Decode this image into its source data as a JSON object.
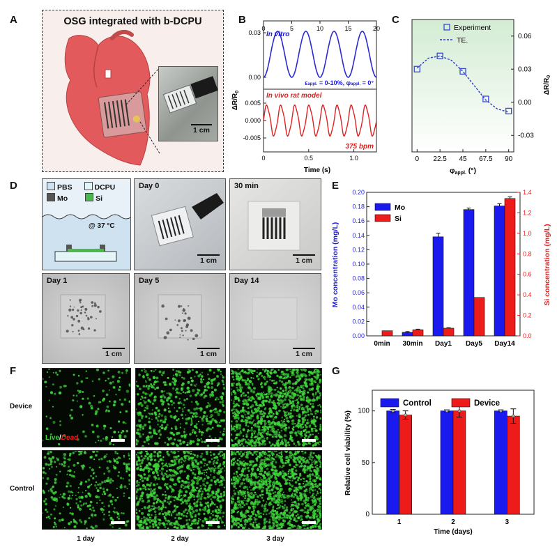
{
  "panels": {
    "a": "A",
    "b": "B",
    "c": "C",
    "d": "D",
    "e": "E",
    "f": "F",
    "g": "G"
  },
  "panel_a": {
    "title": "OSG integrated with b-DCPU",
    "scale": "1 cm"
  },
  "panel_b": {
    "top_label": "In vitro",
    "top_note_strain": "ε",
    "top_note_strain_sub": "appl.",
    "top_note_strain_rest": " = 0-10%, φ",
    "top_note_angle_sub": "appl.",
    "top_note_angle_rest": " = 0°",
    "bottom_label": "In vivo rat model",
    "bpm": "375 bpm",
    "ylabel": "ΔR/R",
    "ylabel_sub": "0",
    "xlabel": "Time (s)",
    "top_yticks": [
      "0.03",
      "0.00"
    ],
    "top_xticks": [
      "0",
      "5",
      "10",
      "15",
      "20"
    ],
    "bottom_yticks": [
      "0.005",
      "0.000",
      "-0.005"
    ],
    "bottom_xticks": [
      "0",
      "0.5",
      "1.0"
    ]
  },
  "panel_d": {
    "legend": [
      "PBS",
      "DCPU",
      "Mo",
      "Si"
    ],
    "temp": "@ 37 °C",
    "photos": [
      "Day 0",
      "30 min",
      "Day 1",
      "Day 5",
      "Day 14"
    ],
    "scale": "1 cm"
  },
  "panel_f": {
    "rows": [
      "Device",
      "Control"
    ],
    "cols": [
      "1 day",
      "2 day",
      "3 day"
    ],
    "stain_live": "Live",
    "stain_sep": "/",
    "stain_dead": "Dead"
  },
  "colors": {
    "blue": "#1a1aee",
    "red": "#ee1b1b",
    "pink": "#f7ece9",
    "green_cell": "#3fd43b",
    "heart": "#e35a5c"
  },
  "chart_data": [
    {
      "id": "B-top",
      "type": "line",
      "title": "In vitro",
      "xlabel": "",
      "ylabel": "ΔR/R0",
      "xlim": [
        0,
        20
      ],
      "ylim": [
        -0.008,
        0.038
      ],
      "series": [
        {
          "name": "In vitro",
          "color": "#2a2ad0",
          "x": [
            0,
            1,
            2,
            3,
            4,
            5,
            6,
            7,
            8,
            9,
            10,
            11,
            12,
            13,
            14,
            15,
            16,
            17,
            18,
            19,
            20
          ],
          "values": [
            0.0,
            0.011,
            0.031,
            0.012,
            0.0,
            0.012,
            0.031,
            0.012,
            0.0,
            0.012,
            0.031,
            0.012,
            0.0,
            0.012,
            0.031,
            0.012,
            0.0,
            0.012,
            0.031,
            0.011,
            0.0
          ]
        }
      ]
    },
    {
      "id": "B-bottom",
      "type": "line",
      "title": "In vivo rat model",
      "xlabel": "Time (s)",
      "ylabel": "ΔR/R0",
      "xlim": [
        0,
        1.25
      ],
      "ylim": [
        -0.009,
        0.009
      ],
      "beats": 8,
      "amplitude": 0.005,
      "series": [
        {
          "name": "In vivo rat model",
          "color": "#e02020"
        }
      ]
    },
    {
      "id": "C",
      "type": "scatter",
      "xlabel": "φappl. (°)",
      "ylabel": "ΔR/R0",
      "xticks": [
        0,
        22.5,
        45,
        67.5,
        90
      ],
      "yticks": [
        -0.03,
        0.0,
        0.03,
        0.06
      ],
      "xlim": [
        -5,
        95
      ],
      "ylim": [
        -0.045,
        0.075
      ],
      "legend": [
        "Experiment",
        "TE."
      ],
      "series": [
        {
          "name": "Experiment",
          "x": [
            0,
            22.5,
            45,
            67.5,
            90
          ],
          "values": [
            0.03,
            0.042,
            0.028,
            0.003,
            -0.008
          ]
        },
        {
          "name": "TE.",
          "x": [
            0,
            11.25,
            22.5,
            33.75,
            45,
            56.25,
            67.5,
            78.75,
            90
          ],
          "values": [
            0.031,
            0.04,
            0.042,
            0.038,
            0.028,
            0.015,
            0.002,
            -0.006,
            -0.009
          ]
        }
      ]
    },
    {
      "id": "E",
      "type": "bar",
      "categories": [
        "0min",
        "30min",
        "Day1",
        "Day5",
        "Day14"
      ],
      "ylabel": "Mo concentration (mg/L)",
      "y2label": "Si concentration (mg/L)",
      "ylim": [
        0,
        0.2
      ],
      "y2lim": [
        0,
        1.4
      ],
      "yticks": [
        "0.00",
        "0.02",
        "0.04",
        "0.06",
        "0.08",
        "0.10",
        "0.12",
        "0.14",
        "0.16",
        "0.18",
        "0.20"
      ],
      "y2ticks": [
        "0.0",
        "0.2",
        "0.4",
        "0.6",
        "0.8",
        "1.0",
        "1.2",
        "1.4"
      ],
      "legend": [
        "Mo",
        "Si"
      ],
      "series": [
        {
          "name": "Mo",
          "axis": "left",
          "values": [
            0.0,
            0.005,
            0.138,
            0.176,
            0.181
          ],
          "err": [
            0,
            0.001,
            0.005,
            0.002,
            0.003
          ]
        },
        {
          "name": "Si",
          "axis": "right",
          "values": [
            0.05,
            0.06,
            0.075,
            0.375,
            1.34
          ],
          "err": [
            0,
            0.005,
            0.005,
            0,
            0.015
          ]
        }
      ]
    },
    {
      "id": "G",
      "type": "bar",
      "categories": [
        "1",
        "2",
        "3"
      ],
      "xlabel": "Time (days)",
      "ylabel": "Relative cell viability (%)",
      "ylim": [
        0,
        120
      ],
      "yticks": [
        "0",
        "50",
        "100"
      ],
      "legend": [
        "Control",
        "Device"
      ],
      "series": [
        {
          "name": "Control",
          "values": [
            100,
            100,
            100
          ],
          "err": [
            1.5,
            1,
            1
          ]
        },
        {
          "name": "Device",
          "values": [
            96,
            100,
            95
          ],
          "err": [
            4,
            6,
            7
          ]
        }
      ]
    }
  ]
}
